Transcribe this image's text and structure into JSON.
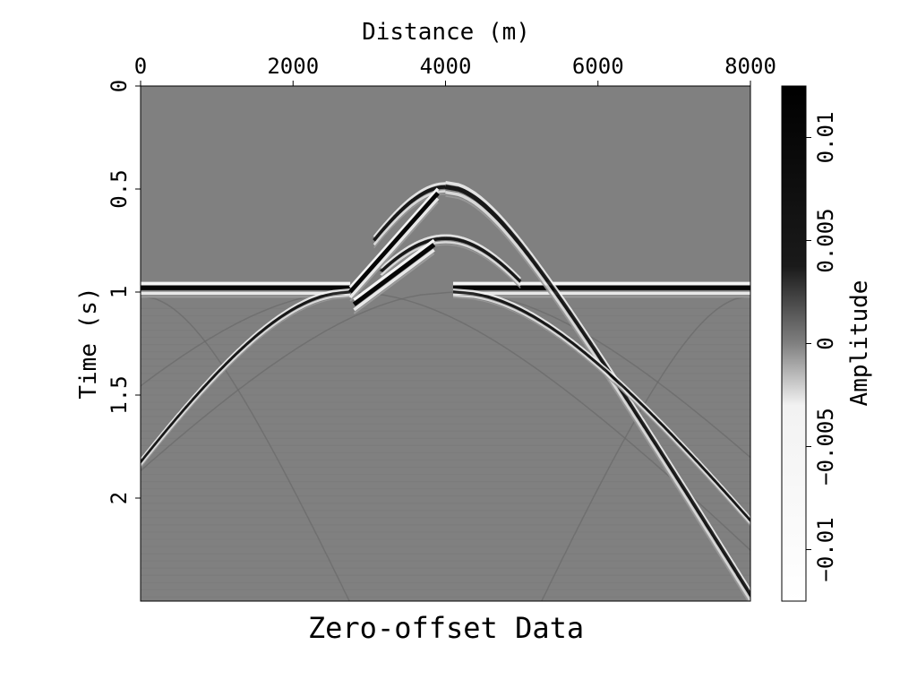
{
  "chart_data": {
    "type": "heatmap",
    "title": "Zero-offset Data",
    "xlabel": "Distance (m)",
    "ylabel": "Time (s)",
    "colorbar_label": "Amplitude",
    "x_axis_position": "top",
    "xlim": [
      0,
      8000
    ],
    "ylim": [
      0,
      2.5
    ],
    "x_ticks": [
      0,
      2000,
      4000,
      6000,
      8000
    ],
    "x_tick_labels": [
      "0",
      "2000",
      "4000",
      "6000",
      "8000"
    ],
    "y_ticks": [
      0,
      0.5,
      1,
      1.5,
      2
    ],
    "y_tick_labels": [
      "0",
      "0.5",
      "1",
      "1.5",
      "2"
    ],
    "colorbar_range": [
      -0.0125,
      0.0125
    ],
    "colorbar_ticks": [
      -0.01,
      -0.005,
      0,
      0.005,
      0.01
    ],
    "colorbar_tick_labels": [
      "−0.01",
      "−0.005",
      "0",
      "0.005",
      "0.01"
    ],
    "colormap": "grayscale (white = negative, black = positive)",
    "background_color": "#808080",
    "events": [
      {
        "kind": "flat reflector",
        "x": [
          0,
          2750
        ],
        "t": 0.98
      },
      {
        "kind": "flat reflector",
        "x": [
          4100,
          8000
        ],
        "t": 0.98
      },
      {
        "kind": "dipping reflector",
        "x": [
          2750,
          3950
        ],
        "t": [
          1.0,
          0.52
        ]
      },
      {
        "kind": "dipping reflector",
        "x": [
          2800,
          3950
        ],
        "t": [
          1.06,
          0.76
        ]
      },
      {
        "kind": "diffraction apex",
        "x": 4000,
        "t": 0.49
      },
      {
        "kind": "diffraction apex",
        "x": 4000,
        "t": 0.74
      },
      {
        "kind": "diffraction apex",
        "x": 2750,
        "t": 1.0
      },
      {
        "kind": "diffraction apex",
        "x": 4100,
        "t": 1.0
      }
    ]
  }
}
